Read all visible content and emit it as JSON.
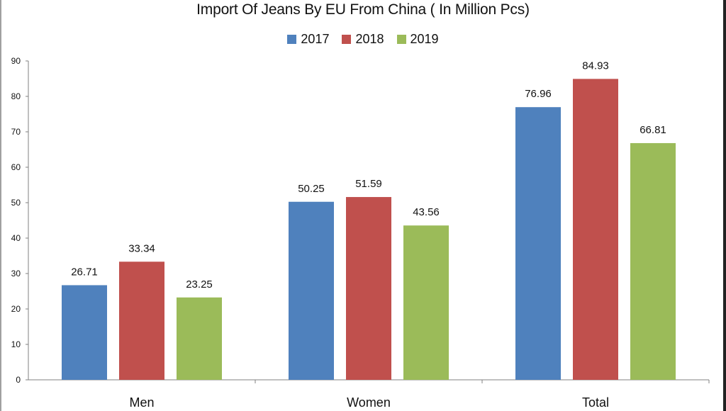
{
  "chart_data": {
    "type": "bar",
    "title": "Import Of Jeans By EU From China ( In Million Pcs)",
    "categories": [
      "Men",
      "Women",
      "Total"
    ],
    "series": [
      {
        "name": "2017",
        "color": "#4f81bd",
        "values": [
          26.71,
          50.25,
          76.96
        ]
      },
      {
        "name": "2018",
        "color": "#c0504d",
        "values": [
          33.34,
          51.59,
          84.93
        ]
      },
      {
        "name": "2019",
        "color": "#9bbb59",
        "values": [
          23.25,
          43.56,
          66.81
        ]
      }
    ],
    "ylim": [
      0,
      90
    ],
    "yticks": [
      "0",
      "10",
      "20",
      "30",
      "40",
      "50",
      "60",
      "70",
      "80",
      "90"
    ],
    "legend_position": "top-center",
    "grid": false
  }
}
